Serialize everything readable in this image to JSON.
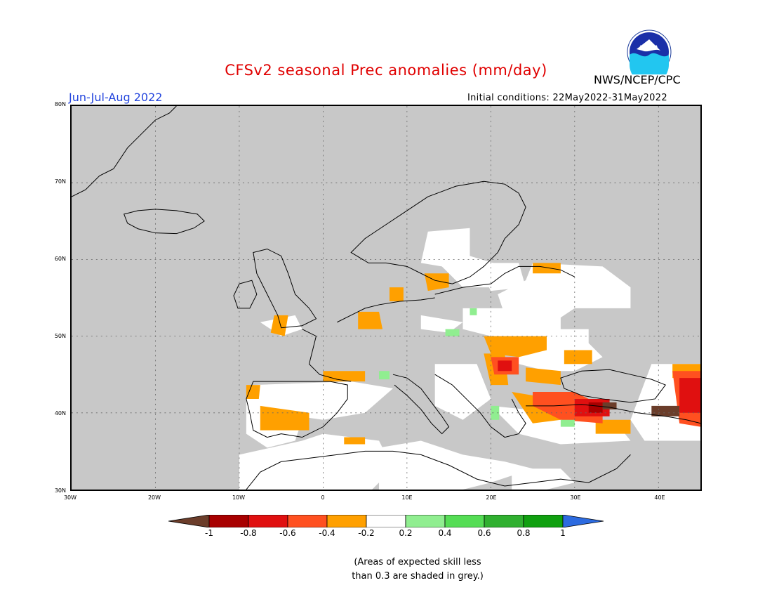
{
  "header": {
    "title": "CFSv2 seasonal Prec anomalies (mm/day)",
    "agency": "NWS/NCEP/CPC",
    "season": "Jun-Jul-Aug 2022",
    "initial_conditions": "Initial conditions: 22May2022-31May2022",
    "logo_text": "NOAA"
  },
  "map": {
    "lat_ticks": [
      "80N",
      "70N",
      "60N",
      "50N",
      "40N",
      "30N"
    ],
    "lon_ticks": [
      "30W",
      "20W",
      "10W",
      "0",
      "10E",
      "20E",
      "30E",
      "40E"
    ],
    "grey_color": "#c8c8c8"
  },
  "legend": {
    "labels": [
      "-1",
      "-0.8",
      "-0.6",
      "-0.4",
      "-0.2",
      "0.2",
      "0.4",
      "0.6",
      "0.8",
      "1"
    ],
    "colors": [
      "#6b3d2a",
      "#a80000",
      "#e01010",
      "#ff5020",
      "#ffa000",
      "#ffffff",
      "#90ee90",
      "#55dd55",
      "#30b030",
      "#10a010",
      "#2d6be0"
    ]
  },
  "note": {
    "line1": "(Areas of expected skill less",
    "line2": "than 0.3 are shaded in grey.)"
  }
}
